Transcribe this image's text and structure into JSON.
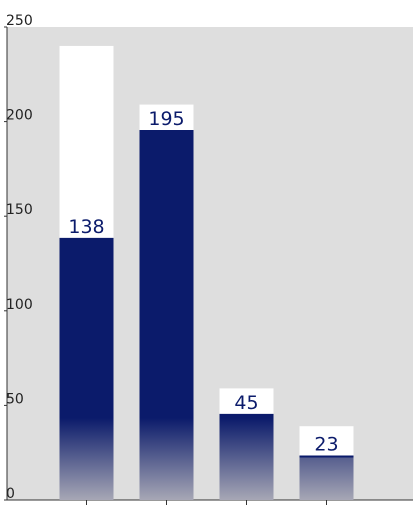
{
  "chart_data": {
    "type": "bar",
    "categories": [
      null,
      null,
      null,
      null
    ],
    "values": [
      138,
      195,
      45,
      23
    ],
    "background_values": [
      240,
      209,
      59,
      39
    ],
    "color": "#0b1b6b",
    "ylim": [
      0,
      250
    ],
    "yticks": [
      0,
      50,
      100,
      150,
      200,
      250
    ]
  }
}
